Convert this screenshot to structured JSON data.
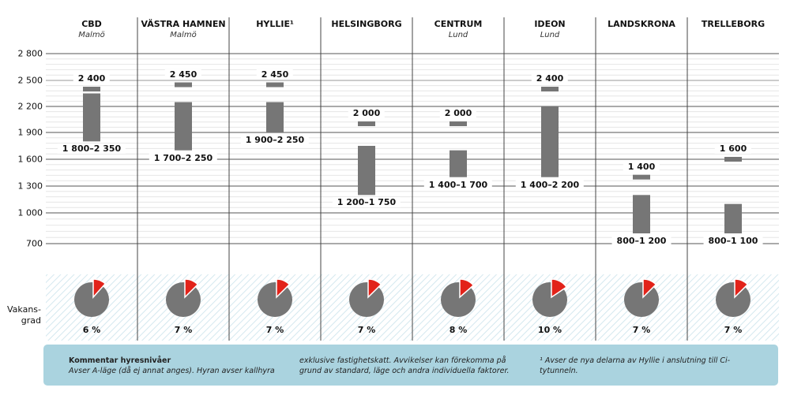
{
  "chart_data": {
    "type": "bar",
    "subtype": "range-bar with marker",
    "y_ticks": [
      2800,
      2500,
      2200,
      1900,
      1600,
      1300,
      1000,
      700
    ],
    "y_tick_labels": [
      "2 800",
      "2 500",
      "2 200",
      "1 900",
      "1 600",
      "1 300",
      "1 000",
      "700"
    ],
    "categories": [
      {
        "name": "CBD",
        "sub": "Malmö",
        "low": 1800,
        "high": 2350,
        "range_label": "1 800–2 350",
        "marker": 2400,
        "marker_label": "2 400",
        "vacancy": 6,
        "vacancy_label": "6 %"
      },
      {
        "name": "VÄSTRA HAMNEN",
        "sub": "Malmö",
        "low": 1700,
        "high": 2250,
        "range_label": "1 700–2 250",
        "marker": 2450,
        "marker_label": "2 450",
        "vacancy": 7,
        "vacancy_label": "7 %"
      },
      {
        "name": "HYLLIE¹",
        "sub": "",
        "low": 1900,
        "high": 2250,
        "range_label": "1 900–2 250",
        "marker": 2450,
        "marker_label": "2 450",
        "vacancy": 7,
        "vacancy_label": "7 %"
      },
      {
        "name": "HELSINGBORG",
        "sub": "",
        "low": 1200,
        "high": 1750,
        "range_label": "1 200–1 750",
        "marker": 2000,
        "marker_label": "2 000",
        "vacancy": 7,
        "vacancy_label": "7 %"
      },
      {
        "name": "CENTRUM",
        "sub": "Lund",
        "low": 1400,
        "high": 1700,
        "range_label": "1 400–1 700",
        "marker": 2000,
        "marker_label": "2 000",
        "vacancy": 8,
        "vacancy_label": "8 %"
      },
      {
        "name": "IDEON",
        "sub": "Lund",
        "low": 1400,
        "high": 2200,
        "range_label": "1 400–2 200",
        "marker": 2400,
        "marker_label": "2 400",
        "vacancy": 10,
        "vacancy_label": "10 %"
      },
      {
        "name": "LANDSKRONA",
        "sub": "",
        "low": 800,
        "high": 1200,
        "range_label": "800–1 200",
        "marker": 1400,
        "marker_label": "1 400",
        "vacancy": 7,
        "vacancy_label": "7 %"
      },
      {
        "name": "TRELLEBORG",
        "sub": "",
        "low": 800,
        "high": 1100,
        "range_label": "800–1 100",
        "marker": 1600,
        "marker_label": "1 600",
        "vacancy": 7,
        "vacancy_label": "7 %"
      }
    ],
    "vacancy_row_label": "Vakans-\ngrad",
    "colors": {
      "bar": "#767676",
      "pie": "#767676",
      "pie_slice": "#e2231a",
      "note_bg": "#aad3df"
    }
  },
  "note": {
    "title": "Kommentar hyresnivåer",
    "col1": "Avser A-läge (då ej annat anges). Hyran avser kallhyra",
    "col2a": "exklusive fastighetskatt. Avvikelser kan förekomma på",
    "col2b": "grund av standard, läge och andra individuella faktorer.",
    "col3a": "¹ Avser de nya delarna av Hyllie i anslutning till Ci-",
    "col3b": "tytunneln."
  }
}
